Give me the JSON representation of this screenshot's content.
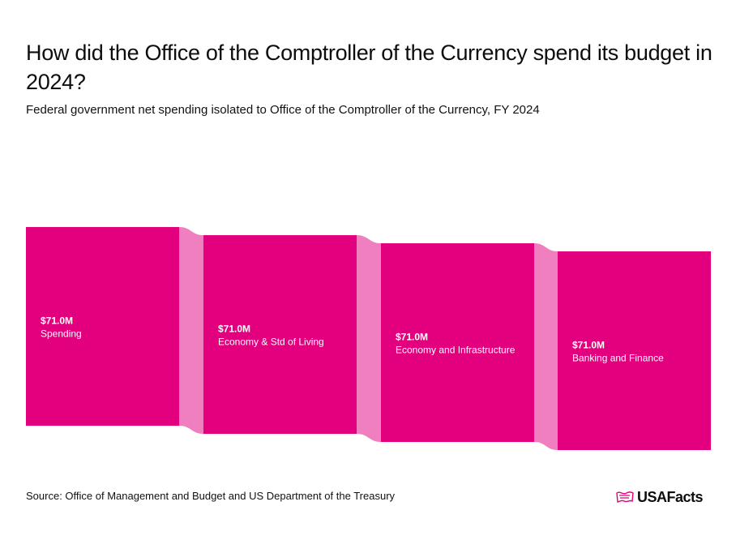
{
  "header": {
    "title": "How did the Office of the Comptroller of the Currency spend its budget in 2024?",
    "subtitle": "Federal government net spending isolated to Office of the Comptroller of the Currency, FY 2024"
  },
  "footer": {
    "source": "Source: Office of Management and Budget and US Department of the Treasury",
    "logo_text": "USAFacts"
  },
  "colors": {
    "node": "#e3007e",
    "link": "#f07fbf",
    "label": "#ffffff"
  },
  "chart_data": {
    "type": "sankey",
    "nodes": [
      {
        "value_label": "$71.0M",
        "name": "Spending",
        "value": 71.0
      },
      {
        "value_label": "$71.0M",
        "name": "Economy & Std of Living",
        "value": 71.0
      },
      {
        "value_label": "$71.0M",
        "name": "Economy and Infrastructure",
        "value": 71.0
      },
      {
        "value_label": "$71.0M",
        "name": "Banking and Finance",
        "value": 71.0
      }
    ],
    "links": [
      {
        "source": 0,
        "target": 1,
        "value": 71.0
      },
      {
        "source": 1,
        "target": 2,
        "value": 71.0
      },
      {
        "source": 2,
        "target": 3,
        "value": 71.0
      }
    ]
  }
}
